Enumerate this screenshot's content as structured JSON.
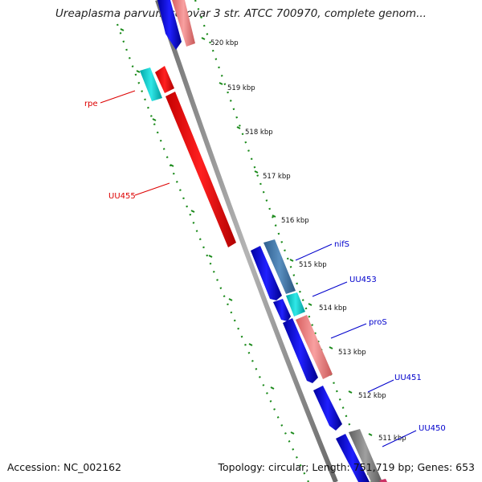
{
  "title": "Ureaplasma parvum serovar 3 str. ATCC 700970, complete genom...",
  "footer": {
    "accession": "Accession: NC_002162",
    "topology": "Topology: circular; Length: 751,719 bp; Genes: 653"
  },
  "scale_labels": [
    "520 kbp",
    "519 kbp",
    "518 kbp",
    "517 kbp",
    "516 kbp",
    "515 kbp",
    "514 kbp",
    "513 kbp",
    "512 kbp",
    "511 kbp"
  ],
  "genes": [
    {
      "name": "rpe",
      "strand": "reverse",
      "color": "#ff0000"
    },
    {
      "name": "UU455",
      "strand": "reverse",
      "color": "#ff0000"
    },
    {
      "name": "nifS",
      "strand": "forward",
      "color": "#0000cc"
    },
    {
      "name": "UU453",
      "strand": "forward",
      "color": "#0000cc"
    },
    {
      "name": "proS",
      "strand": "forward",
      "color": "#0000cc"
    },
    {
      "name": "UU451",
      "strand": "forward",
      "color": "#0000cc"
    },
    {
      "name": "UU450",
      "strand": "forward",
      "color": "#0000cc"
    }
  ],
  "colors": {
    "backbone": "#8c8c8c",
    "scale_dots": "#1a8a1a",
    "reverse_gene": "#ff0000",
    "reverse_gene_light": "#00cccc",
    "forward_gene": "#0000ff",
    "forward_gene_alt": "#4682b4",
    "pink_gene": "#f08080",
    "gray_gene": "#808080"
  }
}
